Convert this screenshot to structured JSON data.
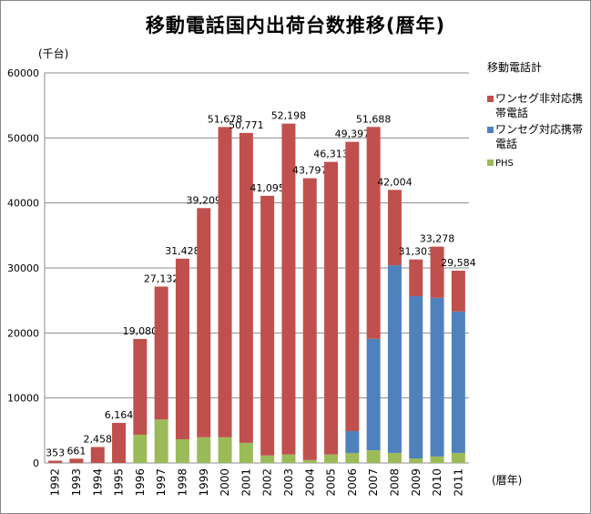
{
  "title": "移動電話国内出荷台数推移(暦年)",
  "unit_label": "(千台)",
  "x_unit_label": "(暦年)",
  "legend": {
    "title": "移動電話計",
    "items": [
      {
        "label": "ワンセグ非対応携帯電話",
        "color": "#c0504d"
      },
      {
        "label": "ワンセグ対応携帯電話",
        "color": "#4f81bd"
      },
      {
        "label": "PHS",
        "color": "#9bbb59"
      }
    ]
  },
  "chart_data": {
    "type": "bar",
    "stacked": true,
    "title": "移動電話国内出荷台数推移(暦年)",
    "ylabel": "(千台)",
    "xlabel": "(暦年)",
    "ylim": [
      0,
      60000
    ],
    "yticks": [
      0,
      10000,
      20000,
      30000,
      40000,
      50000,
      60000
    ],
    "grid": true,
    "legend_position": "right",
    "categories": [
      "1992",
      "1993",
      "1994",
      "1995",
      "1996",
      "1997",
      "1998",
      "1999",
      "2000",
      "2001",
      "2002",
      "2003",
      "2004",
      "2005",
      "2006",
      "2007",
      "2008",
      "2009",
      "2010",
      "2011"
    ],
    "totals": [
      353,
      661,
      2458,
      6164,
      19080,
      27132,
      31428,
      39209,
      51678,
      50771,
      41095,
      52198,
      43797,
      46313,
      49397,
      51688,
      42004,
      31303,
      33278,
      29584
    ],
    "total_labels": [
      "353",
      "661",
      "2,458",
      "6,164",
      "19,080",
      "27,132",
      "31,428",
      "39,209",
      "51,678",
      "50,771",
      "41,095",
      "52,198",
      "43,797",
      "46,313",
      "49,397",
      "51,688",
      "42,004",
      "31,303",
      "33,278",
      "29,584"
    ],
    "series": [
      {
        "name": "PHS",
        "color": "#9bbb59",
        "values": [
          0,
          0,
          0,
          0,
          4350,
          6700,
          3650,
          3950,
          3950,
          3100,
          1150,
          1300,
          450,
          1300,
          1550,
          1950,
          1550,
          700,
          1000,
          1550
        ]
      },
      {
        "name": "ワンセグ対応携帯電話",
        "color": "#4f81bd",
        "values": [
          0,
          0,
          0,
          0,
          0,
          0,
          0,
          0,
          0,
          0,
          0,
          0,
          0,
          0,
          3350,
          17150,
          28850,
          24950,
          24400,
          21750
        ]
      },
      {
        "name": "ワンセグ非対応携帯電話",
        "color": "#c0504d",
        "values": [
          353,
          661,
          2458,
          6164,
          14730,
          20432,
          27778,
          35259,
          47728,
          47671,
          39945,
          50898,
          43347,
          45013,
          44497,
          32588,
          11604,
          5653,
          7878,
          6284
        ]
      }
    ]
  }
}
